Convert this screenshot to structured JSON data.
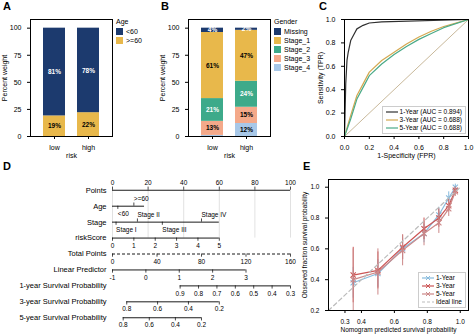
{
  "chart_data": [
    {
      "type": "bar",
      "title": "A",
      "stacked": true,
      "data_labels": true,
      "categories": [
        "low",
        "high"
      ],
      "xlabel": "risk",
      "ylabel": "Percent weight",
      "ylim": [
        0,
        108
      ],
      "yticks": [
        0,
        25,
        50,
        75,
        100
      ],
      "legend": "right",
      "legend_title": "Age",
      "series": [
        {
          "name": ">=60",
          "color": "#E8B84B",
          "values": [
            19,
            22
          ],
          "value_labels": [
            "19%",
            "22%"
          ]
        },
        {
          "name": "<60",
          "color": "#1C3A6E",
          "values": [
            81,
            78
          ],
          "value_labels": [
            "81%",
            "78%"
          ]
        }
      ]
    },
    {
      "type": "bar",
      "title": "B",
      "stacked": true,
      "data_labels": true,
      "categories": [
        "low",
        "high"
      ],
      "xlabel": "risk",
      "ylabel": "Percent weight",
      "ylim": [
        0,
        108
      ],
      "yticks": [
        0,
        25,
        50,
        75,
        100
      ],
      "legend": "right",
      "legend_title": "Gender",
      "series": [
        {
          "name": "Stage_4",
          "color": "#A8C8E8",
          "values": [
            1,
            12
          ],
          "value_labels": [
            null,
            "12%"
          ]
        },
        {
          "name": "Stage_3",
          "color": "#F4A98A",
          "values": [
            13,
            15
          ],
          "value_labels": [
            "13%",
            "15%"
          ]
        },
        {
          "name": "Stage_2",
          "color": "#3DAA8A",
          "values": [
            21,
            24
          ],
          "value_labels": [
            "21%",
            "24%"
          ]
        },
        {
          "name": "Stage_1",
          "color": "#E8B84B",
          "values": [
            61,
            47
          ],
          "value_labels": [
            "61%",
            "47%"
          ]
        },
        {
          "name": "Missing",
          "color": "#1C3A6E",
          "values": [
            4,
            2
          ],
          "value_labels": [
            "4%",
            "2%"
          ]
        }
      ]
    },
    {
      "type": "line",
      "title": "C",
      "xlabel": "1-Specificity (FPR)",
      "ylabel": "Sensitivity (TPR)",
      "xlim": [
        0,
        1
      ],
      "ylim": [
        0,
        1
      ],
      "xticks": [
        {
          "value": 0,
          "label": "0.0"
        },
        0.2,
        0.4,
        0.6,
        0.8,
        {
          "value": 1,
          "label": "1.0"
        }
      ],
      "yticks": [
        {
          "value": 0,
          "label": "0.0"
        },
        0.2,
        0.4,
        0.6,
        0.8,
        {
          "value": 1,
          "label": "1.0"
        }
      ],
      "legend": "lower right",
      "reference_line": {
        "color": "#C8B89A",
        "x": [
          0,
          1
        ],
        "y": [
          0,
          1
        ]
      },
      "series": [
        {
          "name": "1-Year (AUC = 0.894)",
          "color": "#2F2F2F",
          "x": [
            0,
            0.01,
            0.02,
            0.03,
            0.05,
            0.08,
            0.1,
            0.15,
            0.2,
            0.3,
            1.0
          ],
          "y": [
            0,
            0.45,
            0.65,
            0.72,
            0.82,
            0.88,
            0.92,
            0.95,
            0.97,
            0.98,
            1.0
          ]
        },
        {
          "name": "3-Year (AUC = 0.688)",
          "color": "#D4A850",
          "x": [
            0,
            0.05,
            0.1,
            0.15,
            0.2,
            0.3,
            0.4,
            0.5,
            0.6,
            0.7,
            0.8,
            1.0
          ],
          "y": [
            0,
            0.18,
            0.35,
            0.45,
            0.55,
            0.65,
            0.72,
            0.79,
            0.85,
            0.9,
            0.94,
            1.0
          ]
        },
        {
          "name": "5-Year (AUC = 0.688)",
          "color": "#4AAA88",
          "x": [
            0,
            0.05,
            0.1,
            0.15,
            0.2,
            0.3,
            0.4,
            0.5,
            0.6,
            0.7,
            0.8,
            1.0
          ],
          "y": [
            0,
            0.15,
            0.32,
            0.42,
            0.52,
            0.62,
            0.7,
            0.77,
            0.83,
            0.88,
            0.93,
            1.0
          ]
        }
      ]
    },
    {
      "type": "nomogram",
      "title": "D",
      "xlim": [
        0,
        100
      ],
      "rows": [
        {
          "name": "Points",
          "xlim": [
            0,
            100
          ],
          "grid": true,
          "ticks": [
            0,
            20,
            40,
            60,
            80,
            100
          ]
        },
        {
          "name": "Age",
          "xlim": [
            0,
            18
          ],
          "ticks": [
            {
              "value": 3,
              "label": "<60"
            },
            {
              "value": 12,
              "label": ">=60"
            }
          ]
        },
        {
          "name": "Stage",
          "xlim": [
            0,
            60
          ],
          "ticks": [
            {
              "value": 2,
              "label": "Stage I"
            },
            {
              "value": 14,
              "label": "Stage II"
            },
            {
              "value": 28,
              "label": "Stage III"
            },
            {
              "value": 50,
              "label": "Stage IV"
            }
          ]
        },
        {
          "name": "riskScore",
          "xlim": [
            0,
            60
          ],
          "ticks": [
            {
              "value": 0,
              "label": "0"
            },
            {
              "value": 12,
              "label": "1"
            },
            {
              "value": 24,
              "label": "2"
            },
            {
              "value": 36,
              "label": "3"
            },
            {
              "value": 48,
              "label": "4"
            },
            {
              "value": 60,
              "label": "5"
            }
          ]
        },
        {
          "name": "Total Points",
          "xlim": [
            0,
            100
          ],
          "line_style": "dashed",
          "ticks": [
            {
              "value": 0,
              "label": "0"
            },
            {
              "value": 25,
              "label": "40"
            },
            {
              "value": 50,
              "label": "80"
            },
            {
              "value": 75,
              "label": "120"
            },
            {
              "value": 100,
              "label": "160"
            }
          ]
        },
        {
          "name": "Linear Predictor",
          "xlim": [
            0,
            75
          ],
          "ticks": [
            {
              "value": 0,
              "label": "-1"
            },
            {
              "value": 18.75,
              "label": "0"
            },
            {
              "value": 37.5,
              "label": "1"
            },
            {
              "value": 56.25,
              "label": "2"
            },
            {
              "value": 75,
              "label": "3"
            }
          ]
        },
        {
          "name": "1-year Survival Probability",
          "xlim": [
            38,
            100
          ],
          "ticks": [
            {
              "value": 38,
              "label": "0.9"
            },
            {
              "value": 48.333333333333336,
              "label": "0.8"
            },
            {
              "value": 58.666666666666664,
              "label": "0.7"
            },
            {
              "value": 69,
              "label": "0.6"
            },
            {
              "value": 79.33333333333333,
              "label": "0.5"
            },
            {
              "value": 89.66666666666667,
              "label": "0.4"
            },
            {
              "value": 100,
              "label": "0.3"
            }
          ]
        },
        {
          "name": "3-year Survival Probability",
          "xlim": [
            8,
            60
          ],
          "ticks": [
            {
              "value": 8,
              "label": "0.8"
            },
            {
              "value": 25.333333333333332,
              "label": "0.6"
            },
            {
              "value": 42.666666666666664,
              "label": "0.4"
            },
            {
              "value": 60,
              "label": "0.2"
            }
          ]
        },
        {
          "name": "5-year Survival Probability",
          "xlim": [
            6,
            50
          ],
          "ticks": [
            {
              "value": 6,
              "label": "0.8"
            },
            {
              "value": 20.666666666666668,
              "label": "0.6"
            },
            {
              "value": 35.333333333333336,
              "label": "0.4"
            },
            {
              "value": 50,
              "label": "0.2"
            }
          ]
        }
      ]
    },
    {
      "type": "line",
      "title": "E",
      "xlabel": "Nomogram predicted survival probability",
      "ylabel": "Observed fraction survival probability",
      "xlim": [
        0.2,
        1.05
      ],
      "ylim": [
        0.2,
        1.05
      ],
      "xticks": [
        0.3,
        0.4,
        0.6,
        0.8,
        {
          "value": 1,
          "label": "1.0"
        }
      ],
      "yticks": [
        0.2,
        0.4,
        0.6,
        0.8,
        {
          "value": 1,
          "label": "1.0"
        }
      ],
      "legend": "lower right",
      "series": [
        {
          "name": "1-Year",
          "color": "#88BBDD",
          "marker": "x",
          "x": [
            0.35,
            0.5,
            0.65,
            0.78,
            0.87,
            0.93,
            0.97
          ],
          "y": [
            0.38,
            0.44,
            0.6,
            0.7,
            0.82,
            0.93,
            1.0
          ],
          "yerr": [
            0.1,
            0.09,
            0.07,
            0.06,
            0.05,
            0.04,
            0.02
          ]
        },
        {
          "name": "3-Year",
          "color": "#CC5555",
          "marker": "x",
          "x": [
            0.35,
            0.5,
            0.65,
            0.78,
            0.87,
            0.93,
            0.97
          ],
          "y": [
            0.43,
            0.46,
            0.61,
            0.73,
            0.8,
            0.88,
            0.98
          ],
          "yerr": [
            0.18,
            0.12,
            0.08,
            0.07,
            0.06,
            0.04,
            0.02
          ]
        },
        {
          "name": "5-Year",
          "color": "#CC8888",
          "marker": "x",
          "x": [
            0.35,
            0.5,
            0.65,
            0.78,
            0.87,
            0.93,
            0.97
          ],
          "y": [
            0.4,
            0.45,
            0.59,
            0.7,
            0.77,
            0.86,
            0.97
          ],
          "yerr": [
            0.2,
            0.15,
            0.1,
            0.08,
            0.07,
            0.05,
            0.03
          ]
        },
        {
          "name": "Ideal line",
          "color": "#BBBBBB",
          "line_style": "dashed",
          "x": [
            0.2,
            1.0
          ],
          "y": [
            0.2,
            1.0
          ]
        }
      ]
    }
  ]
}
